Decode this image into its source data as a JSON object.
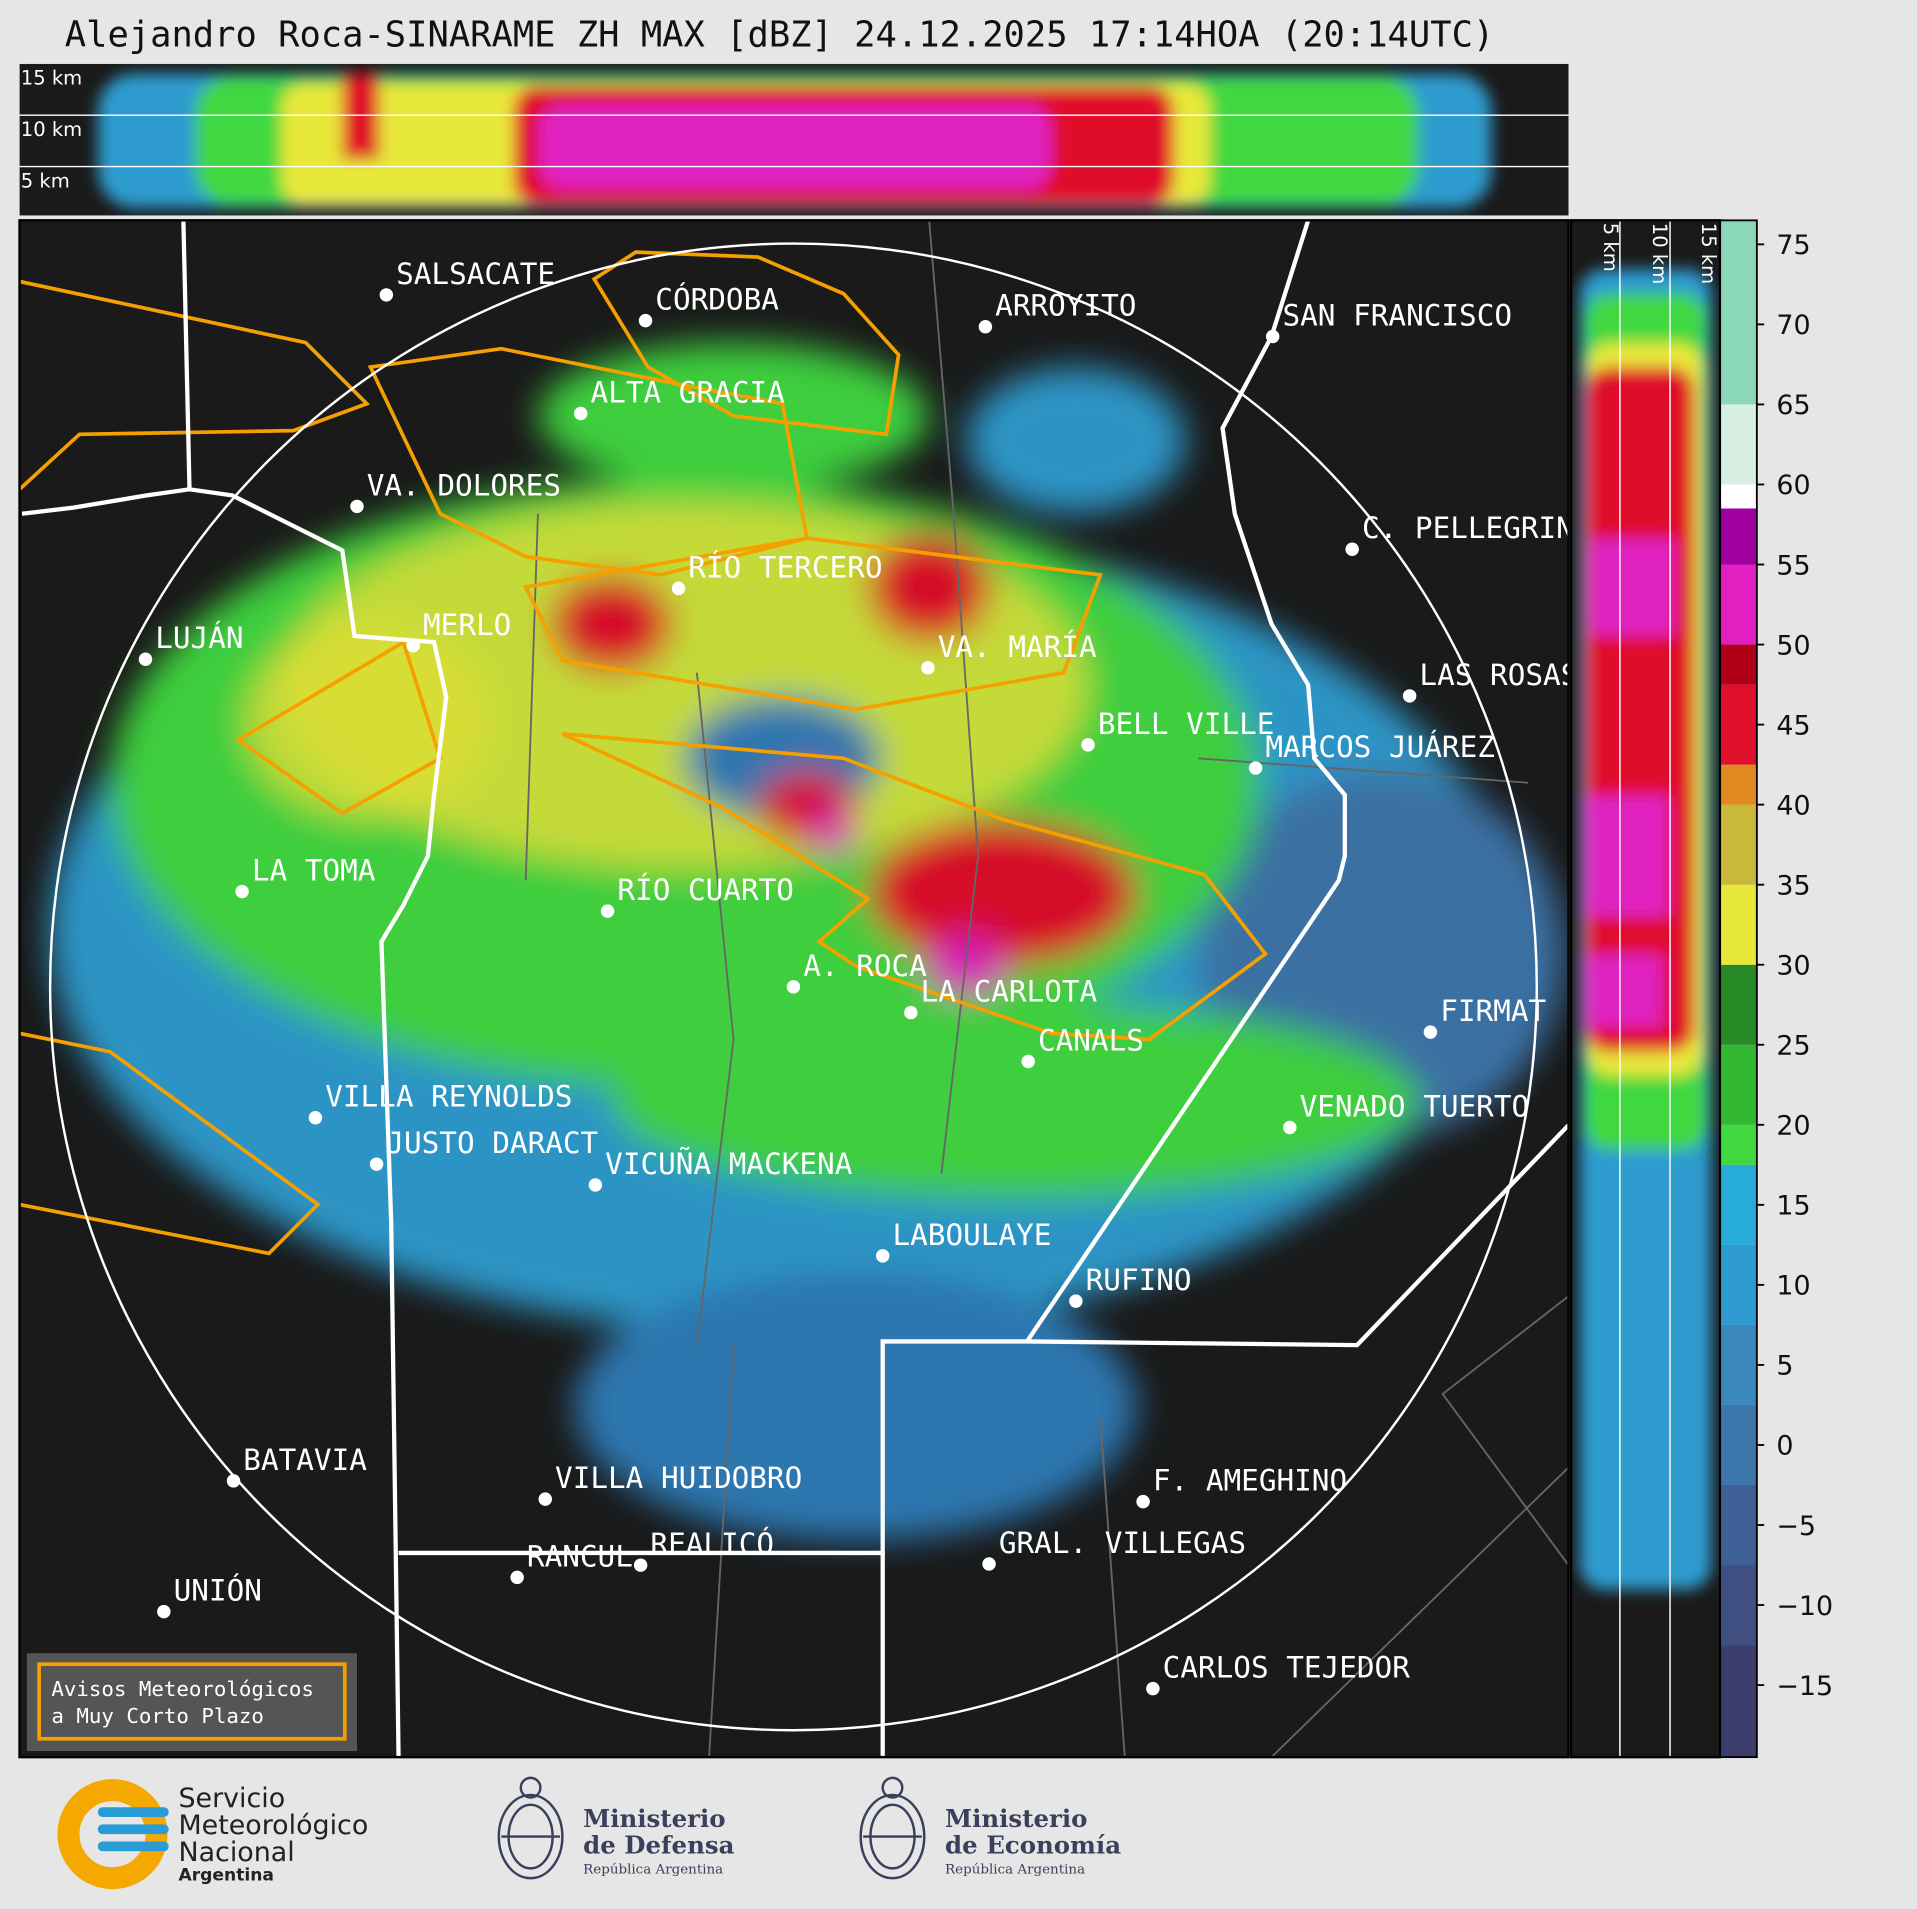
{
  "title": "Alejandro Roca-SINARAME ZH MAX [dBZ] 24.12.2025 17:14HOA (20:14UTC)",
  "cross_section": {
    "top_labels": [
      "15 km",
      "10 km",
      "5 km"
    ],
    "side_labels": [
      "5 km",
      "10 km",
      "15 km"
    ]
  },
  "map": {
    "cities": [
      "SALSACATE",
      "CÓRDOBA",
      "ARROYITO",
      "SAN FRANCISCO",
      "ALTA GRACIA",
      "VA. DOLORES",
      "C. PELLEGRINI",
      "RÍO TERCERO",
      "MERLO",
      "LUJÁN",
      "VA. MARÍA",
      "LAS ROSAS",
      "BELL VILLE",
      "MARCOS JUÁREZ",
      "LA TOMA",
      "RÍO CUARTO",
      "A. ROCA",
      "LA CARLOTA",
      "FIRMAT",
      "CANALS",
      "VILLA REYNOLDS",
      "VENADO TUERTO",
      "JUSTO DARACT",
      "VICUÑA MACKENA",
      "LABOULAYE",
      "RUFINO",
      "BATAVIA",
      "VILLA HUIDOBRO",
      "F. AMEGHINO",
      "GRAL. VILLEGAS",
      "RANCUL",
      "REALICÓ",
      "UNIÓN",
      "CARLOS TEJEDOR"
    ]
  },
  "legend": {
    "lines": [
      "Avisos Meteorológicos",
      "a Muy Corto Plazo"
    ]
  },
  "colorbar": {
    "lim": [
      -19.5,
      76.5
    ],
    "ticks": [
      {
        "value": -15,
        "label": "−15"
      },
      {
        "value": -10,
        "label": "−10"
      },
      {
        "value": -5,
        "label": "−5"
      },
      0,
      5,
      10,
      15,
      20,
      25,
      30,
      35,
      40,
      45,
      50,
      55,
      60,
      65,
      70,
      75
    ],
    "bands": [
      {
        "from": -19.5,
        "color": "#3b3d6b"
      },
      {
        "from": -12.5,
        "color": "#3f4f82"
      },
      {
        "from": -7.5,
        "color": "#3e6096"
      },
      {
        "from": -2.5,
        "color": "#3d76aa"
      },
      {
        "from": 2.5,
        "color": "#3a88bd"
      },
      {
        "from": 7.5,
        "color": "#2d9bcf"
      },
      {
        "from": 12.5,
        "color": "#27acd9"
      },
      {
        "from": 17.5,
        "color": "#3fd83f"
      },
      {
        "from": 20,
        "color": "#33b832"
      },
      {
        "from": 25,
        "color": "#268a26"
      },
      {
        "from": 30,
        "color": "#e8e83a"
      },
      {
        "from": 35,
        "color": "#c9b83a"
      },
      {
        "from": 40,
        "color": "#e08a20"
      },
      {
        "from": 42.5,
        "color": "#e0102a"
      },
      {
        "from": 47.5,
        "color": "#b00018"
      },
      {
        "from": 50,
        "color": "#e020c0"
      },
      {
        "from": 55,
        "color": "#a000a0"
      },
      {
        "from": 58.5,
        "color": "#ffffff"
      },
      {
        "from": 60,
        "color": "#d8f0e4"
      },
      {
        "from": 65,
        "color": "#8ad8b8"
      }
    ]
  },
  "footer": {
    "smn": [
      "Servicio",
      "Meteorológico",
      "Nacional",
      "Argentina"
    ],
    "defensa": [
      "Ministerio",
      "de Defensa",
      "República Argentina"
    ],
    "economia": [
      "Ministerio",
      "de Economía",
      "República Argentina"
    ]
  }
}
